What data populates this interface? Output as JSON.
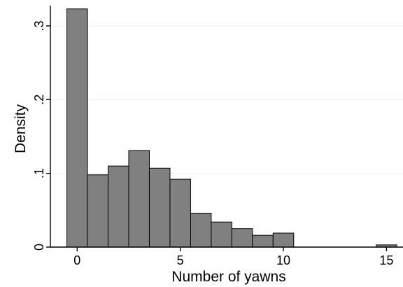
{
  "chart_data": {
    "type": "bar",
    "xlabel": "Number of yawns",
    "ylabel": "Density",
    "bin_width": 1,
    "bins": [
      {
        "start": -0.5,
        "end": 0.5,
        "value": 0.323
      },
      {
        "start": 0.5,
        "end": 1.5,
        "value": 0.098
      },
      {
        "start": 1.5,
        "end": 2.5,
        "value": 0.11
      },
      {
        "start": 2.5,
        "end": 3.5,
        "value": 0.131
      },
      {
        "start": 3.5,
        "end": 4.5,
        "value": 0.107
      },
      {
        "start": 4.5,
        "end": 5.5,
        "value": 0.092
      },
      {
        "start": 5.5,
        "end": 6.5,
        "value": 0.046
      },
      {
        "start": 6.5,
        "end": 7.5,
        "value": 0.034
      },
      {
        "start": 7.5,
        "end": 8.5,
        "value": 0.025
      },
      {
        "start": 8.5,
        "end": 9.5,
        "value": 0.016
      },
      {
        "start": 9.5,
        "end": 10.5,
        "value": 0.019
      },
      {
        "start": 14.5,
        "end": 15.5,
        "value": 0.003
      }
    ],
    "x_ticks": [
      {
        "value": 0,
        "label": "0"
      },
      {
        "value": 5,
        "label": "5"
      },
      {
        "value": 10,
        "label": "10"
      },
      {
        "value": 15,
        "label": "15"
      }
    ],
    "y_ticks": [
      {
        "value": 0,
        "label": "0"
      },
      {
        "value": 0.1,
        "label": ".1"
      },
      {
        "value": 0.2,
        "label": ".2"
      },
      {
        "value": 0.3,
        "label": ".3"
      }
    ],
    "xlim": [
      -1.3,
      15.8
    ],
    "ylim": [
      0,
      0.3275
    ],
    "grid": true,
    "legend": "none",
    "bar_color": "#808080",
    "bar_edge_color": "#000000",
    "grid_color": "#eaf2f3"
  }
}
